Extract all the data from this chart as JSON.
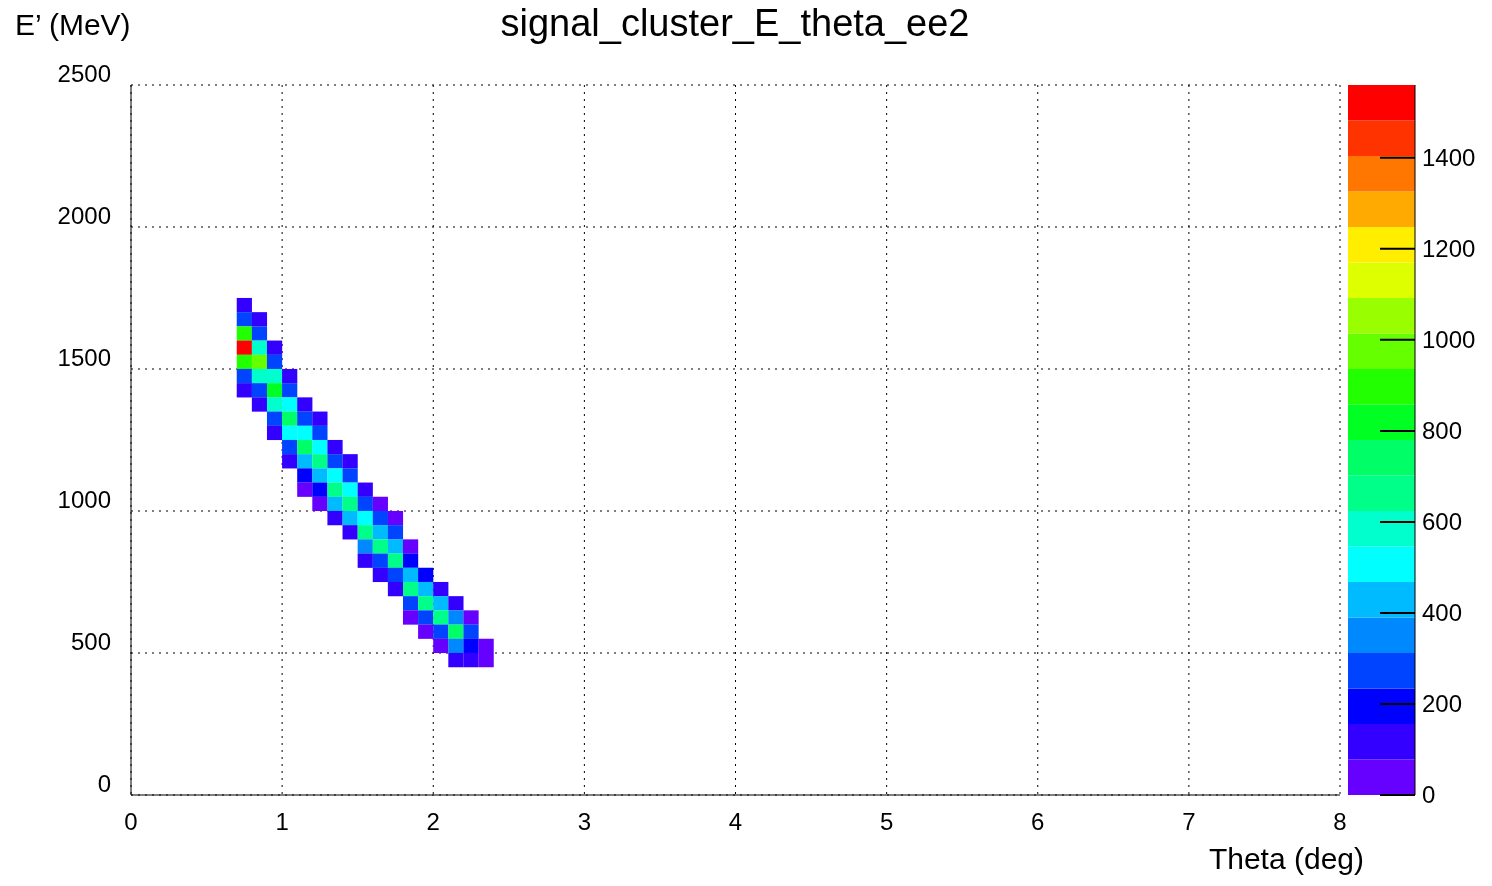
{
  "chart_data": {
    "type": "scatter",
    "marker": "square",
    "title": "signal_cluster_E_theta_ee2",
    "xlabel": "Theta (deg)",
    "ylabel": "E’ (MeV)",
    "x": [
      0.75,
      0.75,
      0.75,
      0.75,
      0.75,
      0.75,
      0.75,
      0.85,
      0.85,
      0.85,
      0.85,
      0.85,
      0.85,
      0.85,
      0.95,
      0.95,
      0.95,
      0.95,
      0.95,
      0.95,
      0.95,
      1.05,
      1.05,
      1.05,
      1.05,
      1.05,
      1.05,
      1.05,
      1.15,
      1.15,
      1.15,
      1.15,
      1.15,
      1.15,
      1.15,
      1.25,
      1.25,
      1.25,
      1.25,
      1.25,
      1.25,
      1.25,
      1.35,
      1.35,
      1.35,
      1.35,
      1.35,
      1.35,
      1.45,
      1.45,
      1.45,
      1.45,
      1.45,
      1.45,
      1.55,
      1.55,
      1.55,
      1.55,
      1.55,
      1.55,
      1.65,
      1.65,
      1.65,
      1.65,
      1.65,
      1.65,
      1.75,
      1.75,
      1.75,
      1.75,
      1.75,
      1.75,
      1.85,
      1.85,
      1.85,
      1.85,
      1.85,
      1.85,
      1.95,
      1.95,
      1.95,
      1.95,
      1.95,
      2.05,
      2.05,
      2.05,
      2.05,
      2.05,
      2.15,
      2.15,
      2.15,
      2.15,
      2.15,
      2.25,
      2.25,
      2.25,
      2.25,
      2.35,
      2.35
    ],
    "values": [
      1725,
      1675,
      1625,
      1575,
      1525,
      1475,
      1425,
      1675,
      1625,
      1575,
      1525,
      1475,
      1425,
      1375,
      1575,
      1525,
      1475,
      1425,
      1375,
      1325,
      1275,
      1475,
      1425,
      1375,
      1325,
      1275,
      1225,
      1175,
      1375,
      1325,
      1275,
      1225,
      1175,
      1125,
      1075,
      1325,
      1275,
      1225,
      1175,
      1125,
      1075,
      1025,
      1225,
      1175,
      1125,
      1075,
      1025,
      975,
      1175,
      1125,
      1075,
      1025,
      975,
      925,
      1075,
      1025,
      975,
      925,
      875,
      825,
      1025,
      975,
      925,
      875,
      825,
      775,
      975,
      925,
      875,
      825,
      775,
      725,
      875,
      825,
      775,
      725,
      675,
      625,
      775,
      725,
      675,
      625,
      575,
      725,
      675,
      625,
      575,
      525,
      675,
      625,
      575,
      525,
      475,
      625,
      575,
      525,
      475,
      525,
      475
    ],
    "cvalues": [
      80,
      300,
      900,
      1500,
      900,
      300,
      80,
      80,
      250,
      600,
      1000,
      600,
      250,
      80,
      80,
      250,
      550,
      850,
      550,
      250,
      80,
      80,
      250,
      500,
      750,
      500,
      250,
      80,
      80,
      250,
      500,
      720,
      450,
      200,
      60,
      80,
      250,
      500,
      700,
      450,
      200,
      60,
      80,
      250,
      480,
      700,
      400,
      150,
      80,
      250,
      480,
      680,
      400,
      150,
      80,
      300,
      500,
      680,
      350,
      100,
      60,
      250,
      450,
      660,
      300,
      80,
      60,
      250,
      450,
      660,
      300,
      80,
      60,
      200,
      450,
      650,
      250,
      60,
      200,
      450,
      680,
      250,
      60,
      150,
      400,
      700,
      300,
      60,
      100,
      350,
      750,
      350,
      80,
      60,
      250,
      200,
      100,
      40,
      40
    ],
    "xlim": [
      0,
      8
    ],
    "xticks": [
      0,
      1,
      2,
      3,
      4,
      5,
      6,
      7,
      8
    ],
    "ylim": [
      0,
      2500
    ],
    "yticks": [
      0,
      500,
      1000,
      1500,
      2000,
      2500
    ],
    "clim": [
      0,
      1560
    ],
    "cticks": [
      0,
      200,
      400,
      600,
      800,
      1000,
      1200,
      1400
    ],
    "grid": true
  }
}
